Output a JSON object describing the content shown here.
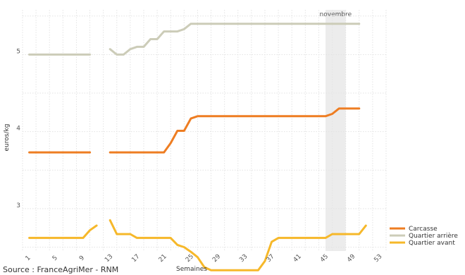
{
  "source": "Source : FranceAgriMer - RNM",
  "chart_data": {
    "type": "line",
    "title": "",
    "xlabel": "Semaines",
    "ylabel": "euros/kg",
    "xlim": [
      0,
      54
    ],
    "ylim": [
      2.45,
      5.58
    ],
    "x_ticks": [
      1,
      5,
      9,
      13,
      17,
      21,
      25,
      29,
      33,
      37,
      41,
      45,
      49,
      53
    ],
    "y_ticks": [
      3,
      4,
      5
    ],
    "grid": true,
    "legend_position": "bottom-right",
    "annotation": {
      "label": "novembre",
      "x_start": 45,
      "x_end": 48
    },
    "series": [
      {
        "name": "Carcasse",
        "color": "#EE7D22",
        "segments": [
          [
            [
              1,
              3.73
            ],
            [
              10,
              3.73
            ]
          ],
          [
            [
              13,
              3.73
            ],
            [
              14,
              3.73
            ],
            [
              15,
              3.73
            ],
            [
              16,
              3.73
            ],
            [
              17,
              3.73
            ],
            [
              18,
              3.73
            ],
            [
              19,
              3.73
            ],
            [
              20,
              3.73
            ],
            [
              21,
              3.73
            ],
            [
              22,
              3.85
            ],
            [
              23,
              4.01
            ],
            [
              24,
              4.01
            ],
            [
              25,
              4.17
            ],
            [
              26,
              4.2
            ],
            [
              27,
              4.2
            ],
            [
              30,
              4.2
            ],
            [
              35,
              4.2
            ],
            [
              40,
              4.2
            ],
            [
              45,
              4.2
            ],
            [
              46,
              4.23
            ],
            [
              47,
              4.3
            ],
            [
              50,
              4.3
            ]
          ]
        ]
      },
      {
        "name": "Quartier arrière",
        "color": "#CCCCB8",
        "segments": [
          [
            [
              1,
              5.0
            ],
            [
              10,
              5.0
            ]
          ],
          [
            [
              13,
              5.07
            ],
            [
              14,
              5.0
            ],
            [
              15,
              5.0
            ],
            [
              16,
              5.07
            ],
            [
              17,
              5.1
            ],
            [
              18,
              5.1
            ],
            [
              19,
              5.2
            ],
            [
              20,
              5.2
            ],
            [
              21,
              5.3
            ],
            [
              22,
              5.3
            ],
            [
              23,
              5.3
            ],
            [
              24,
              5.33
            ],
            [
              25,
              5.4
            ],
            [
              30,
              5.4
            ],
            [
              35,
              5.4
            ],
            [
              40,
              5.4
            ],
            [
              45,
              5.4
            ],
            [
              50,
              5.4
            ]
          ]
        ]
      },
      {
        "name": "Quartier avant",
        "color": "#F6B82A",
        "segments": [
          [
            [
              1,
              2.62
            ],
            [
              9,
              2.62
            ],
            [
              10,
              2.72
            ],
            [
              11,
              2.78
            ]
          ],
          [
            [
              13,
              2.85
            ],
            [
              14,
              2.67
            ],
            [
              15,
              2.67
            ],
            [
              16,
              2.67
            ],
            [
              17,
              2.62
            ],
            [
              20,
              2.62
            ],
            [
              21,
              2.62
            ],
            [
              22,
              2.62
            ],
            [
              23,
              2.53
            ],
            [
              24,
              2.5
            ],
            [
              25,
              2.44
            ],
            [
              26,
              2.37
            ],
            [
              27,
              2.24
            ],
            [
              28,
              2.2
            ],
            [
              30,
              2.2
            ],
            [
              33,
              2.2
            ],
            [
              35,
              2.2
            ],
            [
              36,
              2.32
            ],
            [
              37,
              2.57
            ],
            [
              38,
              2.62
            ],
            [
              40,
              2.62
            ],
            [
              45,
              2.62
            ],
            [
              46,
              2.67
            ],
            [
              50,
              2.67
            ],
            [
              51,
              2.78
            ]
          ]
        ]
      }
    ]
  }
}
